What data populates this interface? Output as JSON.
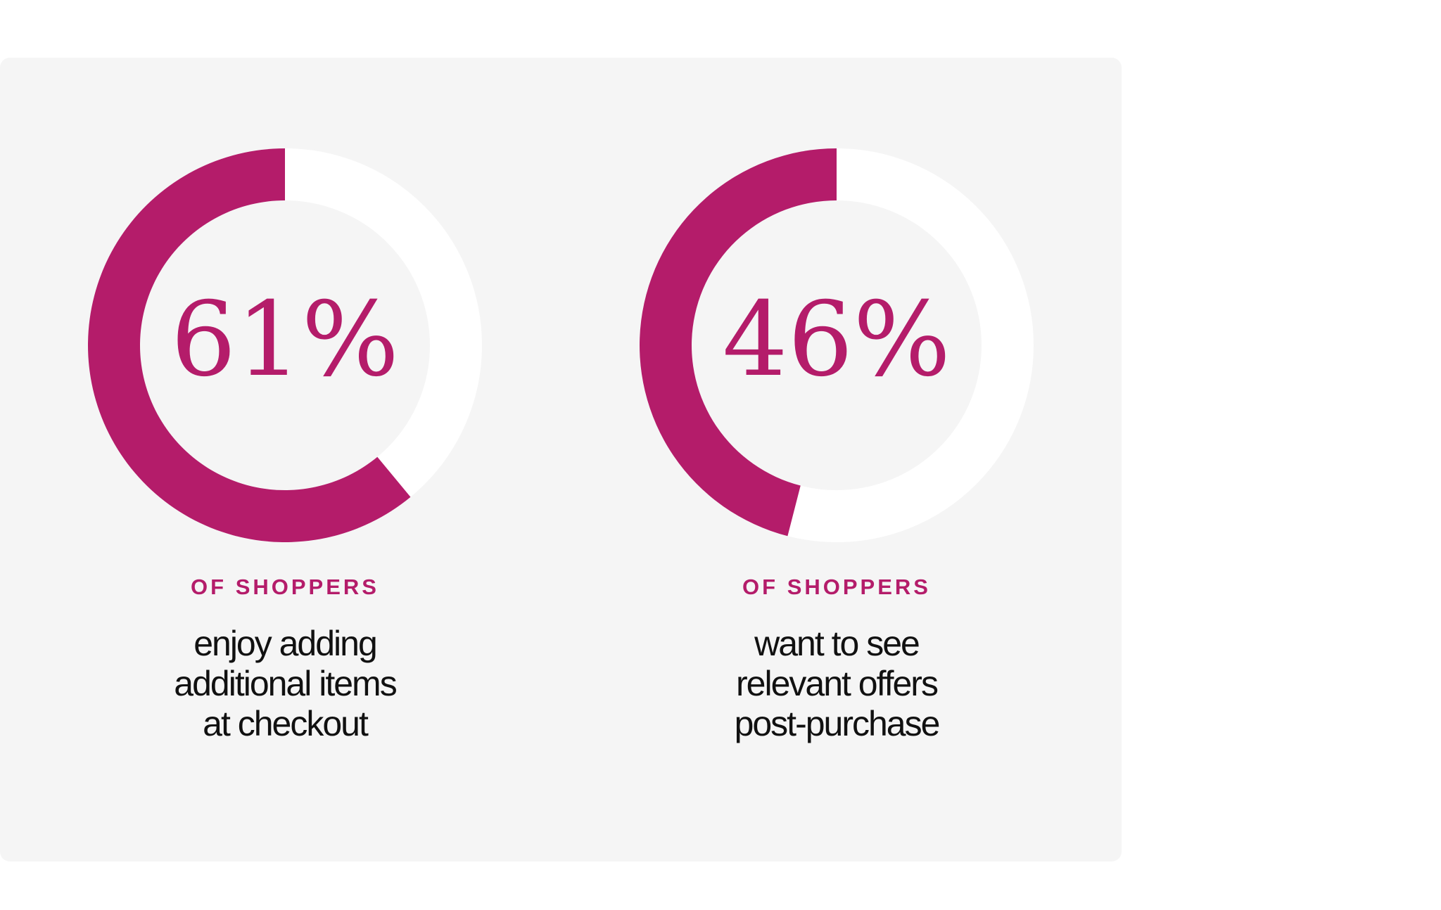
{
  "chart_data": [
    {
      "type": "donut",
      "values": [
        61
      ],
      "value_labels": [
        "61%"
      ],
      "color": "#b41c6a",
      "subtitle": "OF SHOPPERS",
      "caption": [
        "enjoy adding",
        "additional items",
        "at checkout"
      ]
    },
    {
      "type": "donut",
      "values": [
        46
      ],
      "value_labels": [
        "46%"
      ],
      "color": "#b41c6a",
      "subtitle": "OF SHOPPERS",
      "caption": [
        "want to see",
        "relevant offers",
        "post-purchase"
      ]
    }
  ]
}
